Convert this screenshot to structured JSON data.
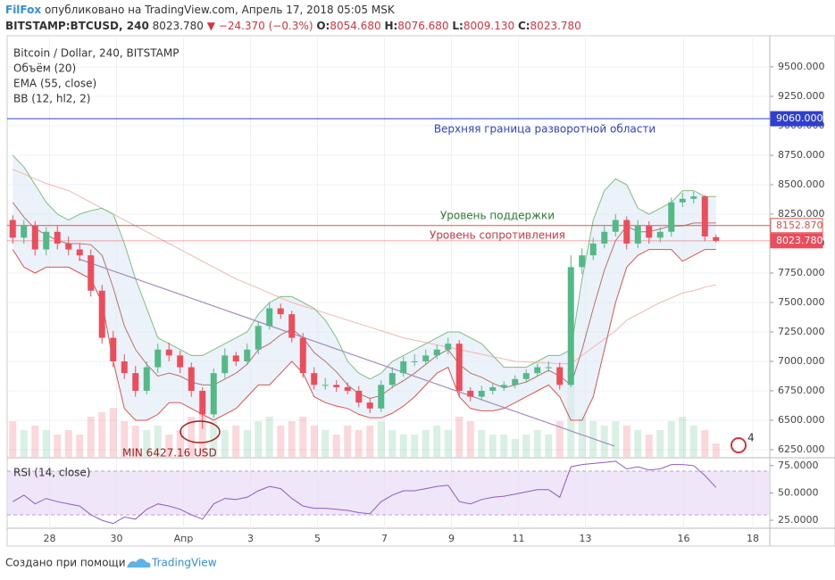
{
  "chart_data": {
    "type": "candlestick",
    "header": {
      "publisher": "FilFox",
      "published": "опубликовано на TradingView.com, Апрель 17, 2018 05:05 MSK",
      "symbol": "BITSTAMP:BTCUSD, 240",
      "last": "8023.780",
      "change": "▼ −24.370 (−0.3%)",
      "o_label": "O:",
      "o": "8054.680",
      "h_label": "H:",
      "h": "8076.680",
      "l_label": "L:",
      "l": "8009.130",
      "c_label": "C:",
      "c": "8023.780"
    },
    "title": "Bitcoin / Dollar, 240, BITSTAMP",
    "legend": [
      "Объём (20)",
      "EMA (55, close)",
      "BB (12, hl2, 2)"
    ],
    "up_color": "#53b987",
    "down_color": "#eb4d5c",
    "x": [
      0,
      1,
      2,
      3,
      4,
      5,
      6,
      7,
      8,
      9,
      10,
      11,
      12,
      13,
      14,
      15,
      16,
      17,
      18,
      19,
      20,
      21,
      22,
      23,
      24,
      25,
      26,
      27,
      28,
      29,
      30,
      31,
      32,
      33,
      34,
      35,
      36,
      37,
      38,
      39,
      40,
      41,
      42,
      43,
      44,
      45,
      46,
      47,
      48,
      49,
      50,
      51,
      52,
      53,
      54,
      55,
      56,
      57,
      58,
      59,
      60,
      61,
      62,
      63
    ],
    "open": [
      8200,
      8050,
      8150,
      7950,
      8100,
      8000,
      7950,
      7900,
      7600,
      7200,
      7000,
      6900,
      6750,
      6950,
      7100,
      7050,
      6950,
      6750,
      6550,
      6900,
      7050,
      7000,
      7100,
      7300,
      7450,
      7400,
      7200,
      6900,
      6800,
      6800,
      6780,
      6750,
      6650,
      6600,
      6800,
      6900,
      7000,
      7000,
      7050,
      7100,
      7150,
      6750,
      6700,
      6750,
      6780,
      6800,
      6850,
      6900,
      6950,
      6950,
      6800,
      7800,
      7900,
      8000,
      8100,
      8200,
      8000,
      8150,
      8050,
      8100,
      8350,
      8380,
      8400,
      8054.68
    ],
    "high": [
      8240,
      8200,
      8190,
      8140,
      8150,
      8060,
      8000,
      7950,
      7650,
      7260,
      7060,
      6960,
      7000,
      7150,
      7160,
      7090,
      6990,
      6780,
      6940,
      7110,
      7080,
      7150,
      7340,
      7500,
      7490,
      7430,
      7240,
      6950,
      6860,
      6840,
      6820,
      6790,
      6690,
      6840,
      6950,
      7040,
      7060,
      7100,
      7140,
      7200,
      7180,
      6780,
      6790,
      6810,
      6830,
      6880,
      6930,
      6980,
      7000,
      6990,
      7900,
      7960,
      8050,
      8150,
      8250,
      8230,
      8200,
      8190,
      8140,
      8390,
      8430,
      8440,
      8410,
      8076.68
    ],
    "low": [
      8000,
      8000,
      7900,
      7900,
      7950,
      7900,
      7850,
      7550,
      7150,
      6950,
      6850,
      6700,
      6720,
      6900,
      7000,
      6900,
      6700,
      6427.16,
      6520,
      6860,
      6960,
      6970,
      7060,
      7270,
      7360,
      7160,
      6860,
      6760,
      6760,
      6740,
      6720,
      6610,
      6560,
      6570,
      6770,
      6870,
      6960,
      6970,
      7020,
      7060,
      6700,
      6660,
      6670,
      6720,
      6750,
      6770,
      6820,
      6870,
      6910,
      6760,
      6780,
      7740,
      7860,
      7960,
      8060,
      7950,
      7960,
      8000,
      8010,
      8060,
      8310,
      8340,
      8020,
      8009.13
    ],
    "close": [
      8050,
      8150,
      7950,
      8100,
      8000,
      7950,
      7900,
      7600,
      7200,
      7000,
      6900,
      6750,
      6950,
      7100,
      7050,
      6950,
      6750,
      6550,
      6900,
      7050,
      7000,
      7100,
      7300,
      7450,
      7400,
      7200,
      6900,
      6800,
      6800,
      6780,
      6750,
      6650,
      6600,
      6800,
      6900,
      7000,
      7000,
      7050,
      7100,
      7150,
      6750,
      6700,
      6750,
      6780,
      6800,
      6850,
      6900,
      6950,
      6950,
      6800,
      7800,
      7900,
      8000,
      8100,
      8200,
      8000,
      8150,
      8050,
      8100,
      8350,
      8380,
      8400,
      8060,
      8023.78
    ],
    "volume": [
      40,
      30,
      35,
      30,
      25,
      30,
      25,
      45,
      50,
      55,
      40,
      35,
      30,
      35,
      25,
      30,
      45,
      50,
      40,
      30,
      35,
      30,
      40,
      45,
      35,
      40,
      45,
      35,
      30,
      25,
      35,
      30,
      35,
      40,
      30,
      25,
      25,
      30,
      35,
      30,
      45,
      40,
      30,
      25,
      25,
      20,
      25,
      30,
      25,
      40,
      100,
      45,
      40,
      35,
      40,
      35,
      30,
      25,
      30,
      40,
      45,
      35,
      30,
      15
    ],
    "bb": {
      "upper_color": "#7fbf7f",
      "lower_color": "#e0534a",
      "basis_color": "#b5736a",
      "fill": "#dfe9f5",
      "upper": [
        8750,
        8650,
        8500,
        8350,
        8250,
        8200,
        8250,
        8280,
        8300,
        8250,
        8000,
        7700,
        7450,
        7200,
        7150,
        7100,
        7050,
        7050,
        7100,
        7150,
        7200,
        7250,
        7400,
        7500,
        7550,
        7550,
        7500,
        7450,
        7350,
        7200,
        7000,
        6900,
        6850,
        6900,
        7000,
        7050,
        7100,
        7150,
        7200,
        7250,
        7250,
        7200,
        7150,
        7050,
        6950,
        6950,
        6950,
        7000,
        7050,
        7050,
        7100,
        7700,
        8200,
        8450,
        8550,
        8500,
        8300,
        8250,
        8300,
        8350,
        8450,
        8450,
        8400,
        8400
      ],
      "basis": [
        8350,
        8225,
        8125,
        8075,
        8025,
        8000,
        8000,
        7990,
        7900,
        7625,
        7300,
        7100,
        6975,
        6875,
        6900,
        6875,
        6825,
        6800,
        6800,
        6850,
        6900,
        6975,
        7100,
        7150,
        7225,
        7275,
        7200,
        7075,
        7000,
        6910,
        6800,
        6725,
        6685,
        6710,
        6780,
        6835,
        6900,
        6975,
        7050,
        7100,
        6975,
        6900,
        6865,
        6815,
        6775,
        6800,
        6825,
        6875,
        6925,
        6875,
        6800,
        7100,
        7450,
        7775,
        8025,
        8150,
        8100,
        8100,
        8125,
        8150,
        8150,
        8175,
        8175,
        8175
      ],
      "lower": [
        7950,
        7800,
        7750,
        7800,
        7800,
        7800,
        7750,
        7700,
        7500,
        7000,
        6600,
        6500,
        6500,
        6550,
        6650,
        6650,
        6600,
        6550,
        6500,
        6550,
        6600,
        6700,
        6800,
        6800,
        6900,
        7000,
        6900,
        6700,
        6650,
        6620,
        6600,
        6550,
        6520,
        6520,
        6560,
        6620,
        6700,
        6800,
        6900,
        6950,
        6700,
        6600,
        6580,
        6580,
        6600,
        6650,
        6700,
        6750,
        6800,
        6700,
        6500,
        6500,
        6700,
        7100,
        7500,
        7800,
        7900,
        7950,
        7950,
        7950,
        7850,
        7900,
        7950,
        7950
      ]
    },
    "ema": {
      "color": "#f0b8b0",
      "values": [
        8630,
        8590,
        8550,
        8510,
        8480,
        8450,
        8400,
        8350,
        8300,
        8250,
        8200,
        8150,
        8100,
        8050,
        8000,
        7950,
        7900,
        7850,
        7800,
        7750,
        7700,
        7660,
        7620,
        7580,
        7540,
        7500,
        7470,
        7440,
        7410,
        7380,
        7350,
        7320,
        7290,
        7260,
        7230,
        7200,
        7180,
        7160,
        7140,
        7120,
        7100,
        7080,
        7060,
        7040,
        7020,
        7000,
        6995,
        6990,
        6985,
        6980,
        6980,
        7050,
        7120,
        7190,
        7260,
        7350,
        7400,
        7450,
        7500,
        7540,
        7580,
        7600,
        7630,
        7650
      ]
    },
    "xlim": [
      -0.5,
      67.82
    ],
    "xticks": [
      {
        "value": 3.3,
        "label": "28"
      },
      {
        "value": 9.3,
        "label": "30"
      },
      {
        "value": 15.3,
        "label": "Апр"
      },
      {
        "value": 21.3,
        "label": "3"
      },
      {
        "value": 27.3,
        "label": "5"
      },
      {
        "value": 33.3,
        "label": "7"
      },
      {
        "value": 39.3,
        "label": "9"
      },
      {
        "value": 45.3,
        "label": "11"
      },
      {
        "value": 51.3,
        "label": "13"
      },
      {
        "value": 60.1,
        "label": "16"
      },
      {
        "value": 66.3,
        "label": "18"
      }
    ],
    "ylim": [
      6189,
      9765
    ],
    "yticks": [
      {
        "value": 6250,
        "label": "6250.000"
      },
      {
        "value": 6500,
        "label": "6500.000"
      },
      {
        "value": 6750,
        "label": "6750.000"
      },
      {
        "value": 7000,
        "label": "7000.000"
      },
      {
        "value": 7250,
        "label": "7250.000"
      },
      {
        "value": 7500,
        "label": "7500.000"
      },
      {
        "value": 7750,
        "label": "7750.000"
      },
      {
        "value": 8000,
        "label": "8000.000"
      },
      {
        "value": 8250,
        "label": "8250.000"
      },
      {
        "value": 8500,
        "label": "8500.000"
      },
      {
        "value": 8750,
        "label": "8750.000"
      },
      {
        "value": 9000,
        "label": "9000.000"
      },
      {
        "value": 9250,
        "label": "9250.000"
      },
      {
        "value": 9500,
        "label": "9500.000"
      }
    ],
    "grid": true,
    "hlines": [
      {
        "value": 9060,
        "label": "9060.000",
        "color": "#2f3fd0",
        "box": "filled"
      },
      {
        "value": 8152.87,
        "label": "8152.870",
        "color": "#e0534a",
        "box": "outline"
      },
      {
        "value": 8023.78,
        "label": "8023.780",
        "color": "#eb4d5c",
        "box": "filled"
      }
    ],
    "trendline": {
      "color": "#a58bc0",
      "points": [
        {
          "x": 5.9,
          "y": 7870
        },
        {
          "x": 53.9,
          "y": 6280
        }
      ]
    },
    "annotations": {
      "upper_zone": "Верхняя граница разворотной области",
      "support": "Уровень поддержки",
      "resistance": "Уровень сопротивления",
      "min": "MIN 6427.16 USD"
    },
    "rsi": {
      "label": "RSI (14, close)",
      "color": "#8e5bc4",
      "band": [
        30,
        70
      ],
      "band_color": "#eadcf7",
      "values": [
        42,
        48,
        40,
        45,
        42,
        40,
        38,
        30,
        25,
        22,
        28,
        26,
        35,
        40,
        38,
        35,
        30,
        26,
        40,
        45,
        44,
        46,
        52,
        56,
        54,
        45,
        38,
        36,
        36,
        35,
        34,
        32,
        31,
        42,
        48,
        52,
        52,
        54,
        56,
        57,
        42,
        40,
        44,
        46,
        47,
        49,
        51,
        53,
        53,
        46,
        74,
        76,
        77,
        78,
        79,
        72,
        74,
        71,
        72,
        76,
        76,
        75,
        66,
        55
      ],
      "ylim": [
        17.7,
        81.4
      ],
      "yticks": [
        {
          "value": 25,
          "label": "25.0000"
        },
        {
          "value": 50,
          "label": "50.0000"
        },
        {
          "value": 75,
          "label": "75.0000"
        }
      ]
    },
    "event_badge": 4,
    "footer": {
      "made_with": "Создано при помощи",
      "brand": "TradingView"
    }
  }
}
